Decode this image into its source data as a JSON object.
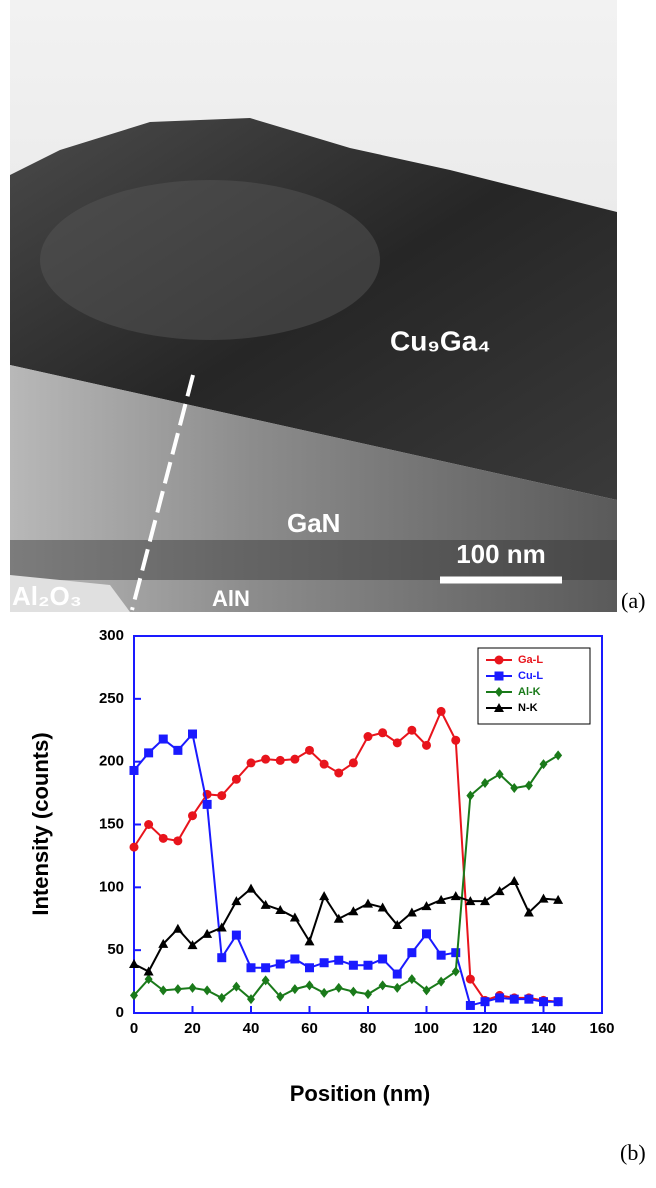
{
  "image_a": {
    "labels": {
      "layer_top": "Cu₉Ga₄",
      "layer_mid": "GaN",
      "scale": "100 nm",
      "substrate": "Al₂O₃",
      "buffer": "AlN"
    },
    "panel_label": "(a)"
  },
  "chart_data": {
    "type": "line",
    "panel_label": "(b)",
    "x_label": "Position (nm)",
    "y_label": "Intensity (counts)",
    "x": [
      0,
      5,
      10,
      15,
      20,
      25,
      30,
      35,
      40,
      45,
      50,
      55,
      60,
      65,
      70,
      75,
      80,
      85,
      90,
      95,
      100,
      105,
      110,
      115,
      120,
      125,
      130,
      135,
      140,
      145
    ],
    "series": [
      {
        "name": "Ga-L",
        "color": "#e8141c",
        "marker": "circle",
        "values": [
          132,
          150,
          139,
          137,
          157,
          174,
          173,
          186,
          199,
          202,
          201,
          202,
          209,
          198,
          191,
          199,
          220,
          223,
          215,
          225,
          213,
          240,
          217,
          27,
          10,
          14,
          12,
          12,
          10,
          9
        ]
      },
      {
        "name": "Cu-L",
        "color": "#1a1aff",
        "marker": "square",
        "values": [
          193,
          207,
          218,
          209,
          222,
          166,
          44,
          62,
          36,
          36,
          39,
          43,
          36,
          40,
          42,
          38,
          38,
          43,
          31,
          48,
          63,
          46,
          48,
          6,
          9,
          12,
          11,
          11,
          9,
          9
        ]
      },
      {
        "name": "Al-K",
        "color": "#1a7a1a",
        "marker": "diamond",
        "values": [
          14,
          27,
          18,
          19,
          20,
          18,
          12,
          21,
          11,
          26,
          13,
          19,
          22,
          16,
          20,
          17,
          15,
          22,
          20,
          27,
          18,
          25,
          33,
          173,
          183,
          190,
          179,
          181,
          198,
          205
        ]
      },
      {
        "name": "N-K",
        "color": "#000000",
        "marker": "triangle",
        "values": [
          39,
          33,
          55,
          67,
          54,
          63,
          68,
          89,
          99,
          86,
          82,
          76,
          57,
          93,
          75,
          81,
          87,
          84,
          70,
          80,
          85,
          90,
          93,
          89,
          89,
          97,
          105,
          80,
          91,
          90
        ]
      }
    ],
    "xlim": [
      0,
      160
    ],
    "ylim": [
      0,
      300
    ],
    "xticks": [
      0,
      20,
      40,
      60,
      80,
      100,
      120,
      140,
      160
    ],
    "yticks": [
      0,
      50,
      100,
      150,
      200,
      250,
      300
    ],
    "axis_color": "#1a1aff",
    "legend": "upper right"
  }
}
